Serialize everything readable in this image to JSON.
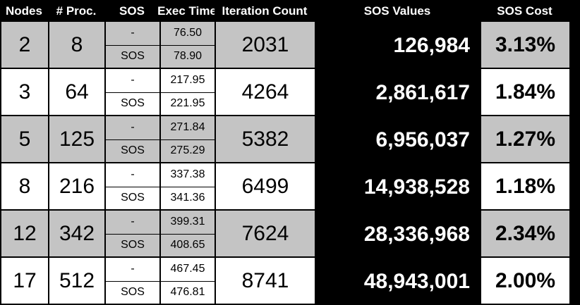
{
  "colors": {
    "shaded": "#c4c4c4",
    "white": "#ffffff",
    "black": "#000000"
  },
  "headers": [
    "Nodes",
    "# Proc.",
    "SOS",
    "Exec Time",
    "Iteration Count",
    "SOS Values",
    "SOS Cost"
  ],
  "rows": [
    {
      "nodes": "2",
      "proc": "8",
      "sos_a": "-",
      "sos_b": "SOS",
      "exec_a": "76.50",
      "exec_b": "78.90",
      "iterations": "2031",
      "sos_values": "126,984",
      "sos_cost": "3.13%",
      "shaded": true
    },
    {
      "nodes": "3",
      "proc": "64",
      "sos_a": "-",
      "sos_b": "SOS",
      "exec_a": "217.95",
      "exec_b": "221.95",
      "iterations": "4264",
      "sos_values": "2,861,617",
      "sos_cost": "1.84%",
      "shaded": false
    },
    {
      "nodes": "5",
      "proc": "125",
      "sos_a": "-",
      "sos_b": "SOS",
      "exec_a": "271.84",
      "exec_b": "275.29",
      "iterations": "5382",
      "sos_values": "6,956,037",
      "sos_cost": "1.27%",
      "shaded": true
    },
    {
      "nodes": "8",
      "proc": "216",
      "sos_a": "-",
      "sos_b": "SOS",
      "exec_a": "337.38",
      "exec_b": "341.36",
      "iterations": "6499",
      "sos_values": "14,938,528",
      "sos_cost": "1.18%",
      "shaded": false
    },
    {
      "nodes": "12",
      "proc": "342",
      "sos_a": "-",
      "sos_b": "SOS",
      "exec_a": "399.31",
      "exec_b": "408.65",
      "iterations": "7624",
      "sos_values": "28,336,968",
      "sos_cost": "2.34%",
      "shaded": true
    },
    {
      "nodes": "17",
      "proc": "512",
      "sos_a": "-",
      "sos_b": "SOS",
      "exec_a": "467.45",
      "exec_b": "476.81",
      "iterations": "8741",
      "sos_values": "48,943,001",
      "sos_cost": "2.00%",
      "shaded": false
    }
  ]
}
